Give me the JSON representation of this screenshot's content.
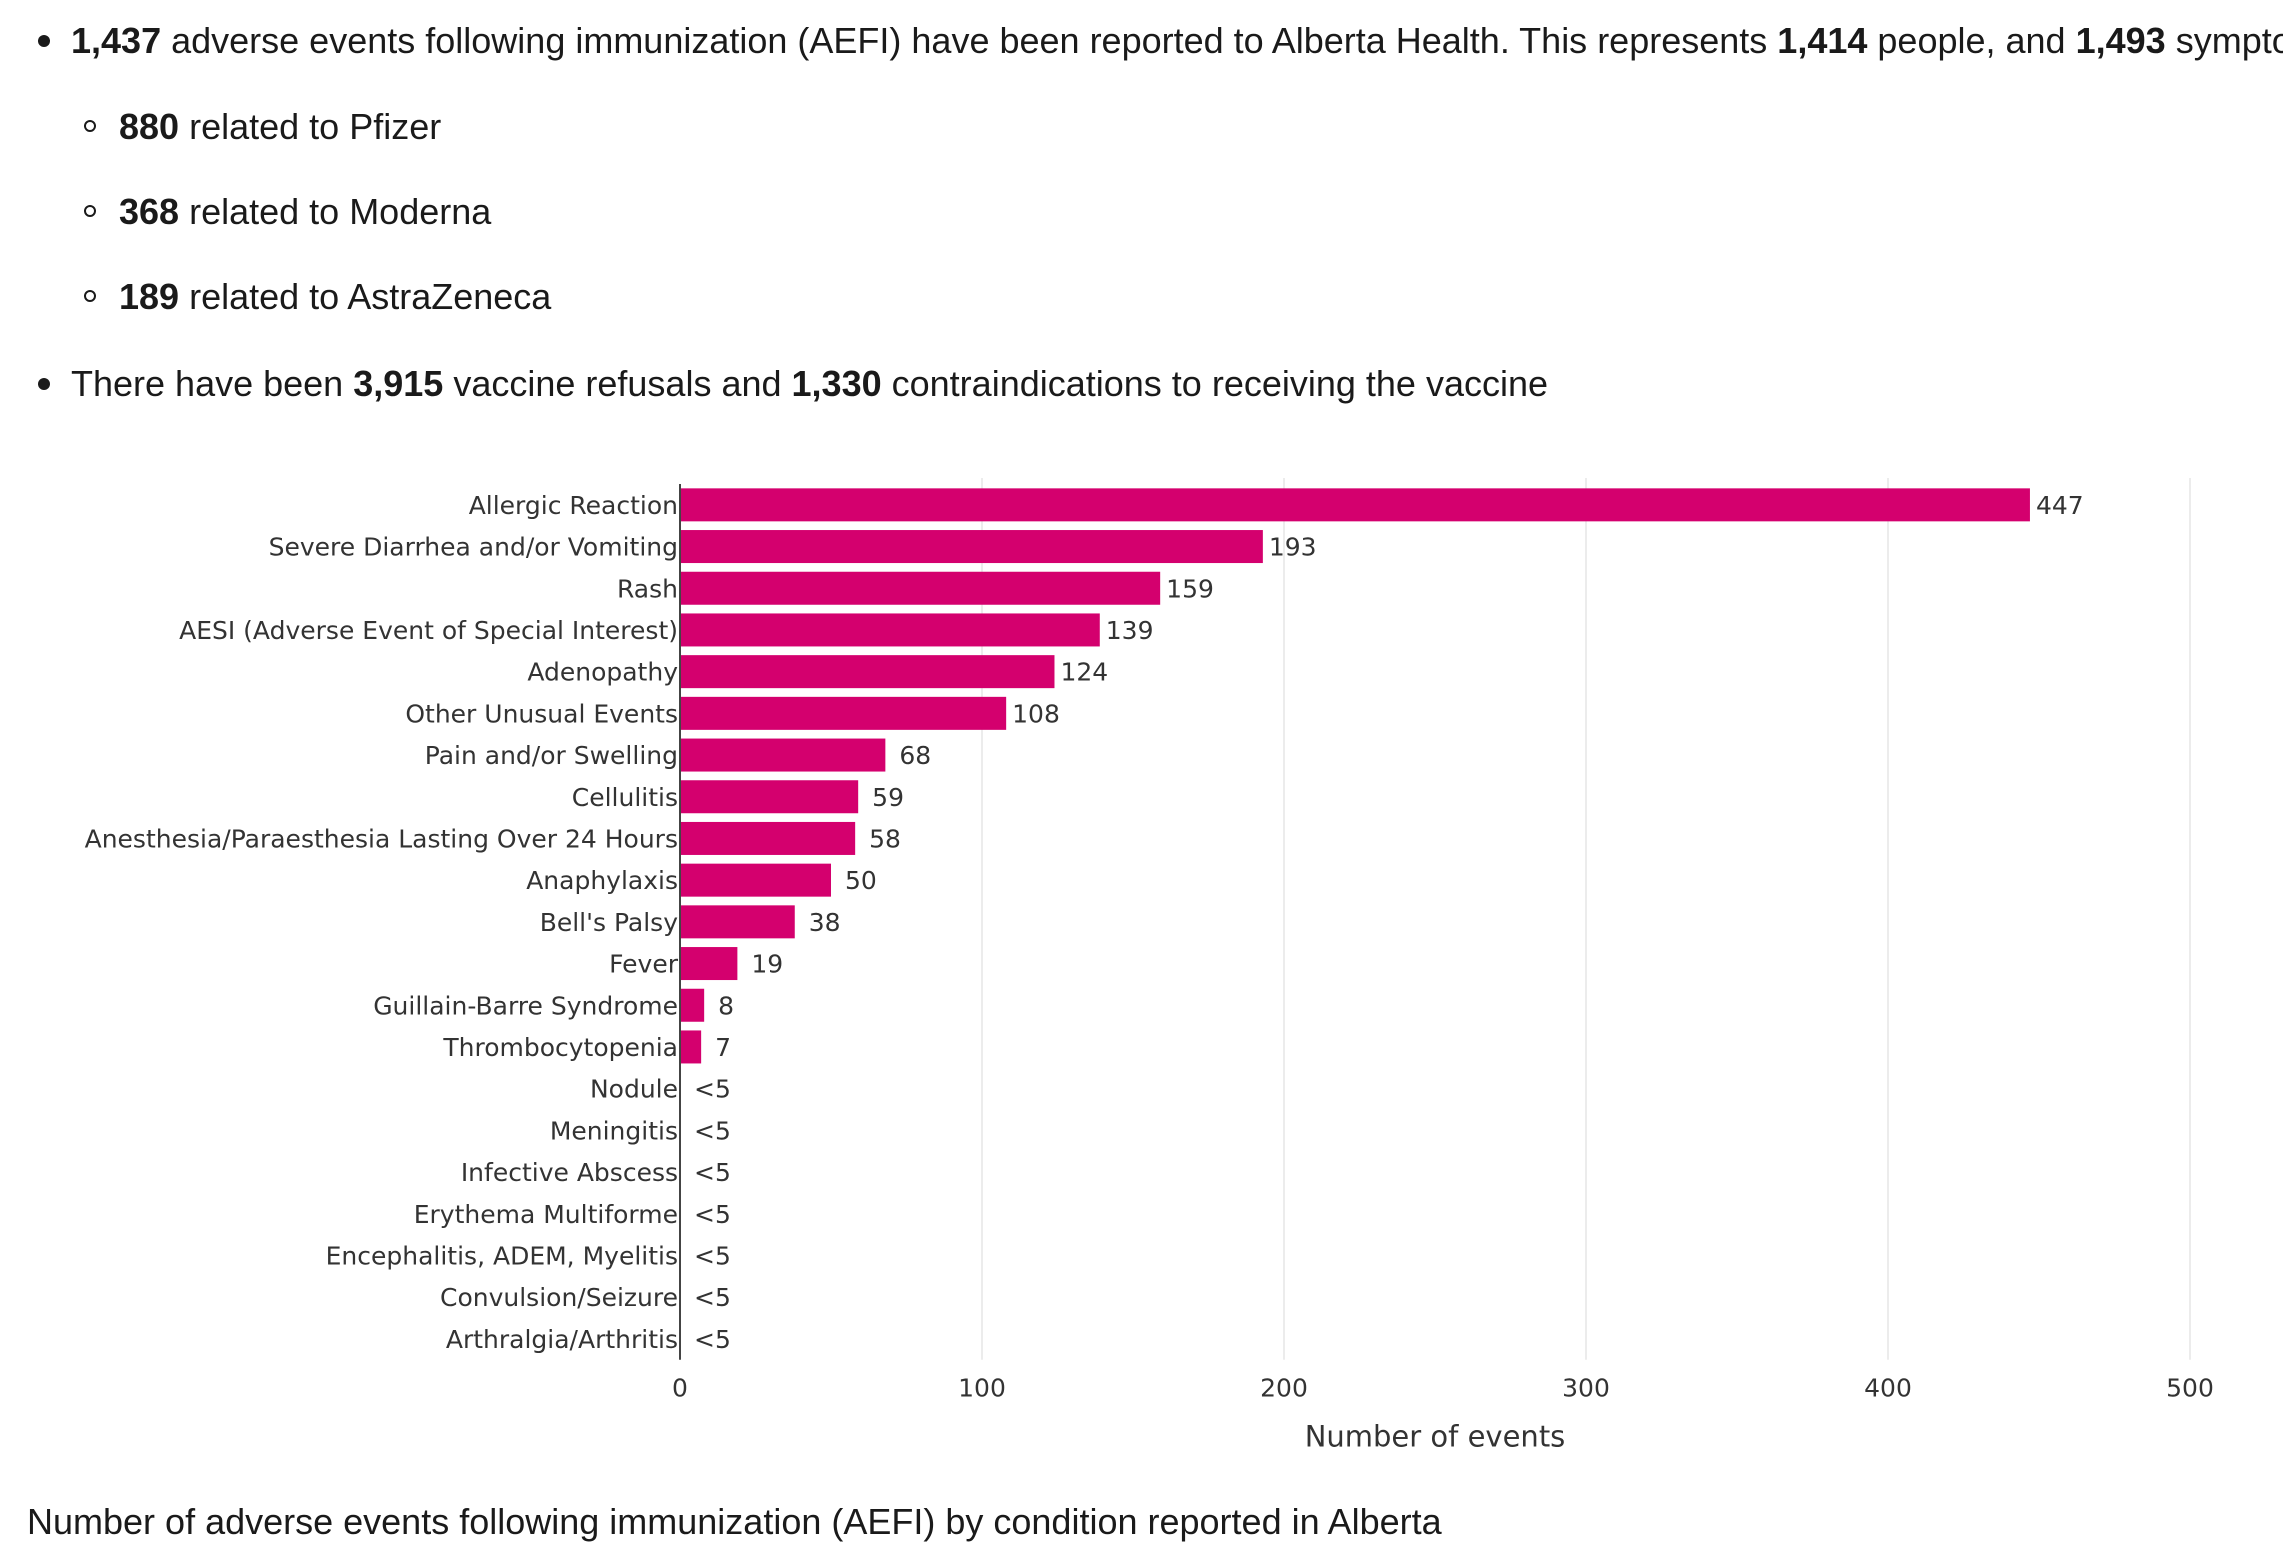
{
  "summary": {
    "aefi": {
      "events": "1,437",
      "text_a": "adverse events following immunization (AEFI) have been reported to Alberta Health. This represents",
      "people": "1,414",
      "text_b": "people, and",
      "symptoms": "1,493",
      "text_c": "symptoms."
    },
    "by_vaccine": [
      {
        "count": "880",
        "text": "related to Pfizer"
      },
      {
        "count": "368",
        "text": "related to Moderna"
      },
      {
        "count": "189",
        "text": "related to AstraZeneca"
      }
    ],
    "refusals": {
      "text_a": "There have been",
      "refusals": "3,915",
      "text_b": "vaccine refusals and",
      "contraindications": "1,330",
      "text_c": "contraindications to receiving the vaccine"
    }
  },
  "chart_data": {
    "type": "bar",
    "orientation": "horizontal",
    "categories": [
      "Allergic Reaction",
      "Severe Diarrhea and/or Vomiting",
      "Rash",
      "AESI (Adverse Event of Special Interest)",
      "Adenopathy",
      "Other Unusual Events",
      "Pain and/or Swelling",
      "Cellulitis",
      "Anesthesia/Paraesthesia Lasting Over 24 Hours",
      "Anaphylaxis",
      "Bell's Palsy",
      "Fever",
      "Guillain-Barre Syndrome",
      "Thrombocytopenia",
      "Nodule",
      "Meningitis",
      "Infective Abscess",
      "Erythema Multiforme",
      "Encephalitis, ADEM, Myelitis",
      "Convulsion/Seizure",
      "Arthralgia/Arthritis"
    ],
    "values": [
      447,
      193,
      159,
      139,
      124,
      108,
      68,
      59,
      58,
      50,
      38,
      19,
      8,
      7,
      null,
      null,
      null,
      null,
      null,
      null,
      null
    ],
    "value_labels": [
      "447",
      "193",
      "159",
      "139",
      "124",
      "108",
      "68",
      "59",
      "58",
      "50",
      "38",
      "19",
      "8",
      "7",
      "<5",
      "<5",
      "<5",
      "<5",
      "<5",
      "<5",
      "<5"
    ],
    "xlabel": "Number of events",
    "ylabel": "",
    "xlim": [
      0,
      500
    ],
    "xticks": [
      0,
      100,
      200,
      300,
      400,
      500
    ],
    "grid": true,
    "legend": "none",
    "bar_color": "#d4006e"
  },
  "caption": "Number of adverse events following immunization (AEFI) by condition reported in Alberta"
}
